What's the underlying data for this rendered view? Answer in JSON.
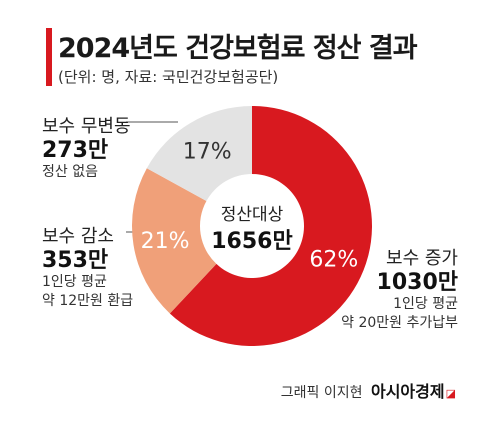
{
  "header": {
    "title": "2024년도 건강보험료 정산 결과",
    "source": "(단위: 명, 자료: 국민건강보험공단)"
  },
  "chart_data": {
    "type": "pie",
    "center_label": "정산대상",
    "center_value": "1656만",
    "slices": [
      {
        "name": "보수 증가",
        "percent": 62,
        "percent_label": "62%",
        "count": "1030만",
        "notes": [
          "1인당 평균",
          "약 20만원 추가납부"
        ],
        "color": "#d8191f",
        "text_color": "#ffffff"
      },
      {
        "name": "보수 감소",
        "percent": 21,
        "percent_label": "21%",
        "count": "353만",
        "notes": [
          "1인당 평균",
          "약 12만원 환급"
        ],
        "color": "#f0a079",
        "text_color": "#ffffff"
      },
      {
        "name": "보수 무변동",
        "percent": 17,
        "percent_label": "17%",
        "count": "273만",
        "notes": [
          "정산 없음"
        ],
        "color": "#e3e3e3",
        "text_color": "#333333"
      }
    ]
  },
  "footer": {
    "credit": "그래픽 이지현",
    "brand": "아시아경제",
    "brand_mark": "◪"
  }
}
